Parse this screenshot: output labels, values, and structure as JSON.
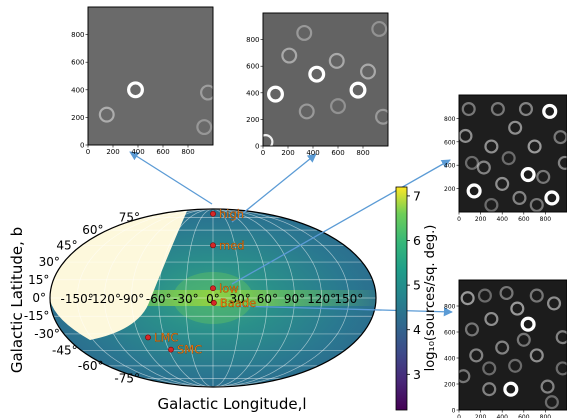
{
  "chart_data": [
    {
      "type": "heatmap",
      "projection": "mollweide",
      "xlabel": "Galactic Longitude,l",
      "ylabel": "Galactic Latitude, b",
      "lon_ticks": [
        "-150°",
        "-120°",
        "-90°",
        "-60°",
        "-30°",
        "0°",
        "30°",
        "60°",
        "90°",
        "120°",
        "150°"
      ],
      "lon_tick_values": [
        -150,
        -120,
        -90,
        -60,
        -30,
        0,
        30,
        60,
        90,
        120,
        150
      ],
      "lat_ticks": [
        "75°",
        "60°",
        "45°",
        "30°",
        "15°",
        "0°",
        "-15°",
        "-30°",
        "-45°",
        "-60°",
        "-75°"
      ],
      "lat_tick_values": [
        75,
        60,
        45,
        30,
        15,
        0,
        -15,
        -30,
        -45,
        -60,
        -75
      ],
      "grid": true,
      "colorbar": {
        "label": "log₁₀(sources/sq. deg.)",
        "range": [
          2.2,
          7.2
        ],
        "ticks": [
          3,
          4,
          5,
          6,
          7
        ],
        "colormap": "viridis"
      },
      "points": [
        {
          "label": "high",
          "l": 0,
          "b": 80
        },
        {
          "label": "med",
          "l": 0,
          "b": 45
        },
        {
          "label": "low",
          "l": 0,
          "b": 8
        },
        {
          "label": "Baade",
          "l": 1,
          "b": -4
        },
        {
          "label": "LMC",
          "l": -80,
          "b": -33
        },
        {
          "label": "SMC",
          "l": -57,
          "b": -44
        }
      ],
      "colors": {
        "marker": "#d62728",
        "label_text": "#ff7f0e",
        "empty_region": "#fdf8dc",
        "arrow": "#5b9bd5"
      }
    },
    {
      "type": "heatmap",
      "panel": "inset-high",
      "xticks": [
        0,
        200,
        400,
        600,
        800
      ],
      "yticks": [
        0,
        200,
        400,
        600,
        800
      ],
      "rings": [
        [
          380,
          400,
          1.0
        ],
        [
          150,
          220,
          0.45
        ],
        [
          960,
          380,
          0.35
        ],
        [
          930,
          130,
          0.3
        ]
      ]
    },
    {
      "type": "heatmap",
      "panel": "inset-med",
      "xticks": [
        0,
        200,
        400,
        600,
        800
      ],
      "yticks": [
        0,
        200,
        400,
        600,
        800
      ],
      "rings": [
        [
          100,
          390,
          1.0
        ],
        [
          430,
          540,
          1.0
        ],
        [
          760,
          420,
          1.0
        ],
        [
          210,
          680,
          0.45
        ],
        [
          590,
          640,
          0.45
        ],
        [
          840,
          560,
          0.45
        ],
        [
          350,
          260,
          0.35
        ],
        [
          960,
          220,
          0.35
        ],
        [
          600,
          300,
          0.3
        ],
        [
          20,
          30,
          0.9
        ],
        [
          930,
          880,
          0.3
        ],
        [
          330,
          850,
          0.35
        ]
      ]
    },
    {
      "type": "heatmap",
      "panel": "inset-low",
      "xticks": [
        0,
        200,
        400,
        600,
        800
      ],
      "yticks": [
        200,
        400,
        600,
        800
      ],
      "rings": [
        [
          140,
          180,
          1.0
        ],
        [
          840,
          860,
          1.0
        ],
        [
          640,
          320,
          1.0
        ],
        [
          860,
          120,
          1.0
        ],
        [
          60,
          650,
          0.5
        ],
        [
          300,
          560,
          0.5
        ],
        [
          520,
          720,
          0.5
        ],
        [
          700,
          560,
          0.55
        ],
        [
          400,
          240,
          0.5
        ],
        [
          230,
          380,
          0.45
        ],
        [
          560,
          120,
          0.45
        ],
        [
          90,
          880,
          0.4
        ],
        [
          980,
          420,
          0.45
        ],
        [
          780,
          300,
          0.4
        ],
        [
          360,
          880,
          0.4
        ],
        [
          620,
          880,
          0.45
        ],
        [
          460,
          460,
          0.35
        ],
        [
          940,
          640,
          0.4
        ],
        [
          120,
          420,
          0.35
        ],
        [
          300,
          60,
          0.35
        ],
        [
          720,
          60,
          0.4
        ]
      ]
    },
    {
      "type": "heatmap",
      "panel": "inset-baade",
      "xticks": [
        0,
        200,
        400,
        600,
        800
      ],
      "yticks": [
        0,
        200,
        400,
        600,
        800
      ],
      "rings": [
        [
          480,
          160,
          1.0
        ],
        [
          640,
          660,
          1.0
        ],
        [
          80,
          860,
          0.55
        ],
        [
          300,
          700,
          0.5
        ],
        [
          540,
          780,
          0.55
        ],
        [
          880,
          820,
          0.5
        ],
        [
          720,
          420,
          0.5
        ],
        [
          160,
          420,
          0.45
        ],
        [
          400,
          480,
          0.45
        ],
        [
          820,
          180,
          0.45
        ],
        [
          280,
          160,
          0.45
        ],
        [
          600,
          540,
          0.4
        ],
        [
          960,
          560,
          0.45
        ],
        [
          120,
          620,
          0.4
        ],
        [
          440,
          900,
          0.4
        ],
        [
          720,
          880,
          0.4
        ],
        [
          280,
          320,
          0.35
        ],
        [
          860,
          60,
          0.35
        ],
        [
          520,
          340,
          0.35
        ],
        [
          40,
          260,
          0.4
        ],
        [
          960,
          320,
          0.35
        ],
        [
          240,
          880,
          0.35
        ]
      ]
    }
  ]
}
